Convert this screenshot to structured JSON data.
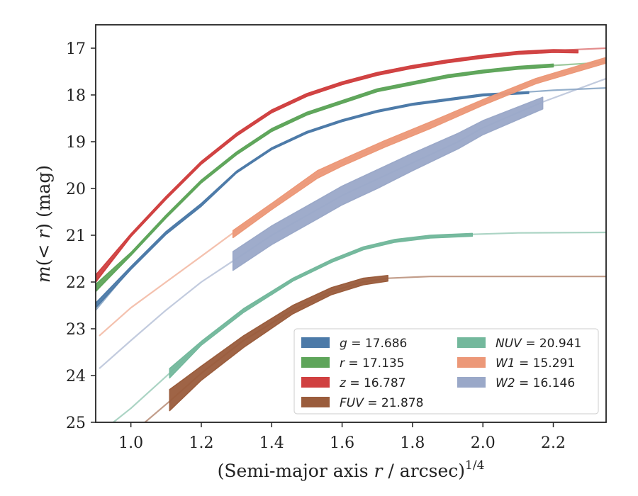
{
  "chart_data": {
    "type": "line",
    "xlabel": "(Semi-major axis r / arcsec)",
    "xlabel_var": "r",
    "xlabel_pre": "(Semi-major axis ",
    "xlabel_post": " / arcsec)",
    "xlabel_exp": "1/4",
    "ylabel_pre": "m(< ",
    "ylabel_var": "r",
    "ylabel_post": ") (mag)",
    "xlim": [
      0.9,
      2.35
    ],
    "ylim": [
      25.0,
      16.5
    ],
    "y_inverted": true,
    "grid": false,
    "legend_position": "lower-right",
    "xticks": [
      1.0,
      1.2,
      1.4,
      1.6,
      1.8,
      2.0,
      2.2
    ],
    "xtick_labels": [
      "1.0",
      "1.2",
      "1.4",
      "1.6",
      "1.8",
      "2.0",
      "2.2"
    ],
    "yticks": [
      17,
      18,
      19,
      20,
      21,
      22,
      23,
      24,
      25
    ],
    "ytick_labels": [
      "17",
      "18",
      "19",
      "20",
      "21",
      "22",
      "23",
      "24",
      "25"
    ],
    "series": [
      {
        "id": "g",
        "band": "g",
        "value": "17.686",
        "label": "g = 17.686",
        "color": "#4c7aa8",
        "model_x": [
          0.9,
          1.0,
          1.1,
          1.2,
          1.3,
          1.4,
          1.5,
          1.6,
          1.7,
          1.8,
          1.9,
          2.0,
          2.1,
          2.2,
          2.35
        ],
        "model_y": [
          22.6,
          21.7,
          20.95,
          20.35,
          19.65,
          19.15,
          18.8,
          18.55,
          18.35,
          18.2,
          18.1,
          18.0,
          17.95,
          17.9,
          17.85
        ],
        "obs_x": [
          0.9,
          1.0,
          1.1,
          1.2,
          1.3,
          1.4,
          1.5,
          1.6,
          1.7,
          1.8,
          1.9,
          2.0,
          2.13
        ],
        "obs_lo": [
          22.45,
          21.67,
          20.92,
          20.32,
          19.63,
          19.13,
          18.78,
          18.53,
          18.33,
          18.18,
          18.08,
          17.98,
          17.93
        ],
        "obs_hi": [
          22.55,
          21.73,
          20.98,
          20.38,
          19.67,
          19.17,
          18.82,
          18.57,
          18.37,
          18.22,
          18.12,
          18.02,
          17.97
        ]
      },
      {
        "id": "r",
        "band": "r",
        "value": "17.135",
        "label": "r = 17.135",
        "color": "#5ea55a",
        "model_x": [
          0.9,
          1.0,
          1.1,
          1.2,
          1.3,
          1.4,
          1.5,
          1.6,
          1.7,
          1.8,
          1.9,
          2.0,
          2.1,
          2.2,
          2.35
        ],
        "model_y": [
          22.2,
          21.4,
          20.6,
          19.85,
          19.25,
          18.75,
          18.4,
          18.15,
          17.9,
          17.75,
          17.6,
          17.5,
          17.42,
          17.37,
          17.3
        ],
        "obs_x": [
          0.9,
          1.0,
          1.1,
          1.2,
          1.3,
          1.4,
          1.5,
          1.6,
          1.7,
          1.8,
          1.9,
          2.0,
          2.1,
          2.2
        ],
        "obs_lo": [
          22.05,
          21.37,
          20.57,
          19.82,
          19.22,
          18.72,
          18.37,
          18.12,
          17.87,
          17.72,
          17.57,
          17.47,
          17.39,
          17.34
        ],
        "obs_hi": [
          22.2,
          21.43,
          20.63,
          19.88,
          19.28,
          18.78,
          18.43,
          18.18,
          17.93,
          17.78,
          17.63,
          17.53,
          17.45,
          17.4
        ]
      },
      {
        "id": "z",
        "band": "z",
        "value": "16.787",
        "label": "z = 16.787",
        "color": "#d04040",
        "model_x": [
          0.9,
          1.0,
          1.1,
          1.2,
          1.3,
          1.4,
          1.5,
          1.6,
          1.7,
          1.8,
          1.9,
          2.0,
          2.1,
          2.2,
          2.35
        ],
        "model_y": [
          22.0,
          21.0,
          20.2,
          19.45,
          18.85,
          18.35,
          18.0,
          17.75,
          17.55,
          17.4,
          17.28,
          17.18,
          17.1,
          17.05,
          17.0
        ],
        "obs_x": [
          0.9,
          1.0,
          1.1,
          1.2,
          1.3,
          1.4,
          1.5,
          1.6,
          1.7,
          1.8,
          1.9,
          2.0,
          2.1,
          2.2,
          2.27
        ],
        "obs_lo": [
          21.85,
          20.97,
          20.17,
          19.42,
          18.82,
          18.32,
          17.97,
          17.72,
          17.52,
          17.37,
          17.25,
          17.15,
          17.07,
          17.03,
          17.04
        ],
        "obs_hi": [
          22.0,
          21.03,
          20.23,
          19.48,
          18.88,
          18.38,
          18.03,
          17.78,
          17.58,
          17.43,
          17.31,
          17.21,
          17.13,
          17.09,
          17.1
        ]
      },
      {
        "id": "fuv",
        "band": "FUV",
        "value": "21.878",
        "label": "FUV = 21.878",
        "color": "#9a5c3c",
        "model_x": [
          1.04,
          1.11,
          1.2,
          1.32,
          1.46,
          1.57,
          1.66,
          1.73,
          1.85,
          2.0,
          2.2,
          2.35
        ],
        "model_y": [
          25.0,
          24.55,
          23.95,
          23.25,
          22.6,
          22.2,
          22.0,
          21.92,
          21.88,
          21.88,
          21.88,
          21.88
        ],
        "obs_x": [
          1.11,
          1.2,
          1.32,
          1.46,
          1.57,
          1.66,
          1.73
        ],
        "obs_lo": [
          24.3,
          23.8,
          23.15,
          22.5,
          22.12,
          21.92,
          21.86
        ],
        "obs_hi": [
          24.75,
          24.1,
          23.4,
          22.68,
          22.27,
          22.06,
          21.98
        ]
      },
      {
        "id": "nuv",
        "band": "NUV",
        "value": "20.941",
        "label": "NUV = 20.941",
        "color": "#73b89c",
        "model_x": [
          0.95,
          1.0,
          1.11,
          1.2,
          1.32,
          1.46,
          1.57,
          1.66,
          1.75,
          1.85,
          1.97,
          2.1,
          2.35
        ],
        "model_y": [
          25.0,
          24.7,
          23.95,
          23.3,
          22.6,
          21.95,
          21.55,
          21.28,
          21.12,
          21.03,
          20.98,
          20.95,
          20.94
        ],
        "obs_x": [
          1.11,
          1.2,
          1.32,
          1.46,
          1.57,
          1.66,
          1.75,
          1.85,
          1.97
        ],
        "obs_lo": [
          23.85,
          23.27,
          22.57,
          21.92,
          21.52,
          21.25,
          21.09,
          21.0,
          20.96
        ],
        "obs_hi": [
          24.05,
          23.35,
          22.65,
          21.98,
          21.58,
          21.31,
          21.15,
          21.06,
          21.02
        ]
      },
      {
        "id": "w1",
        "band": "W1",
        "value": "15.291",
        "label": "W1 = 15.291",
        "color": "#ec9878",
        "model_x": [
          0.91,
          1.0,
          1.1,
          1.2,
          1.29,
          1.4,
          1.53,
          1.6,
          1.72,
          1.85,
          2.0,
          2.15,
          2.35
        ],
        "model_y": [
          23.15,
          22.55,
          22.0,
          21.45,
          20.95,
          20.4,
          19.7,
          19.45,
          19.05,
          18.65,
          18.15,
          17.7,
          17.25
        ],
        "obs_x": [
          1.29,
          1.4,
          1.53,
          1.6,
          1.72,
          1.85,
          2.0,
          2.15,
          2.35
        ],
        "obs_lo": [
          20.9,
          20.32,
          19.62,
          19.38,
          18.98,
          18.58,
          18.1,
          17.65,
          17.2
        ],
        "obs_hi": [
          21.05,
          20.45,
          19.78,
          19.52,
          19.12,
          18.72,
          18.22,
          17.76,
          17.32
        ]
      },
      {
        "id": "w2",
        "band": "W2",
        "value": "16.146",
        "label": "W2 = 16.146",
        "color": "#9aa8c8",
        "model_x": [
          0.91,
          1.0,
          1.1,
          1.2,
          1.29,
          1.4,
          1.53,
          1.6,
          1.7,
          1.8,
          1.93,
          2.0,
          2.17,
          2.35
        ],
        "model_y": [
          23.85,
          23.25,
          22.6,
          22.0,
          21.55,
          21.0,
          20.45,
          20.15,
          19.8,
          19.45,
          19.0,
          18.7,
          18.15,
          17.65
        ],
        "obs_x": [
          1.29,
          1.4,
          1.53,
          1.6,
          1.7,
          1.8,
          1.93,
          2.0,
          2.17
        ],
        "obs_lo": [
          21.35,
          20.8,
          20.25,
          19.95,
          19.6,
          19.25,
          18.82,
          18.55,
          18.05
        ],
        "obs_hi": [
          21.75,
          21.2,
          20.65,
          20.35,
          20.0,
          19.62,
          19.15,
          18.85,
          18.3
        ]
      }
    ],
    "legend": {
      "columns": [
        [
          {
            "band": "g",
            "value": "17.686",
            "color": "#4c7aa8"
          },
          {
            "band": "r",
            "value": "17.135",
            "color": "#5ea55a"
          },
          {
            "band": "z",
            "value": "16.787",
            "color": "#d04040"
          },
          {
            "band": "FUV",
            "value": "21.878",
            "color": "#9a5c3c"
          }
        ],
        [
          {
            "band": "NUV",
            "value": "20.941",
            "color": "#73b89c"
          },
          {
            "band": "W1",
            "value": "15.291",
            "color": "#ec9878"
          },
          {
            "band": "W2",
            "value": "16.146",
            "color": "#9aa8c8"
          }
        ]
      ]
    }
  }
}
